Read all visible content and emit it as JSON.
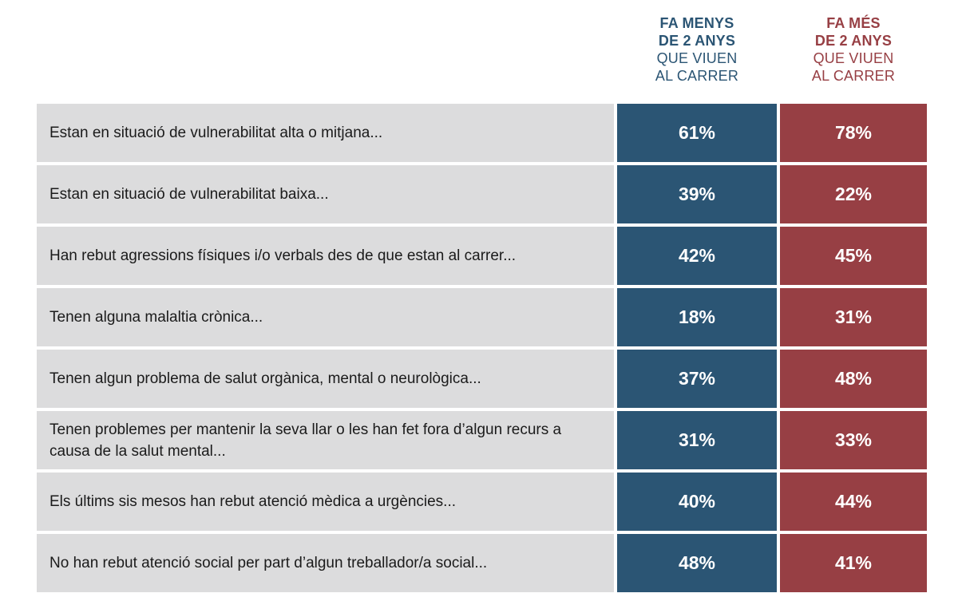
{
  "chart_data": {
    "type": "table",
    "columns": [
      {
        "line1": "FA MENYS",
        "line2": "DE 2 ANYS",
        "line3": "QUE VIUEN",
        "line4": "AL CARRER",
        "color": "#2b5574"
      },
      {
        "line1": "FA MÉS",
        "line2": "DE 2 ANYS",
        "line3": "QUE VIUEN",
        "line4": "AL CARRER",
        "color": "#973f44"
      }
    ],
    "rows": [
      {
        "label": "Estan en situació de vulnerabilitat alta o mitjana...",
        "values": [
          "61%",
          "78%"
        ]
      },
      {
        "label": "Estan en situació de vulnerabilitat baixa...",
        "values": [
          "39%",
          "22%"
        ]
      },
      {
        "label": "Han rebut agressions físiques i/o verbals des de que estan al carrer...",
        "values": [
          "42%",
          "45%"
        ]
      },
      {
        "label": "Tenen alguna malaltia crònica...",
        "values": [
          "18%",
          "31%"
        ]
      },
      {
        "label": "Tenen algun problema de salut orgànica, mental o neurològica...",
        "values": [
          "37%",
          "48%"
        ]
      },
      {
        "label": "Tenen problemes per mantenir la seva llar o les han fet fora d’algun recurs a causa de la salut mental...",
        "values": [
          "31%",
          "33%"
        ]
      },
      {
        "label": "Els últims sis mesos han rebut atenció mèdica a urgències...",
        "values": [
          "40%",
          "44%"
        ]
      },
      {
        "label": "No han rebut atenció social per part d’algun treballador/a social...",
        "values": [
          "48%",
          "41%"
        ]
      }
    ],
    "label_background": "#dcdcdd"
  }
}
